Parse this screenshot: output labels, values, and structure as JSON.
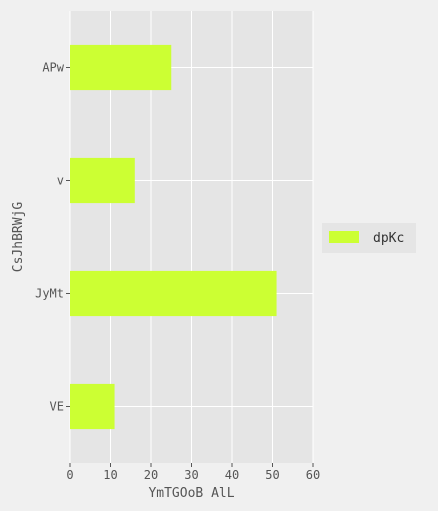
{
  "chart_data": {
    "type": "bar",
    "orientation": "horizontal",
    "categories": [
      "APw",
      "v",
      "JyMt",
      "VE"
    ],
    "series": [
      {
        "name": "dpKc",
        "values": [
          25,
          16,
          51,
          11
        ]
      }
    ],
    "xlabel": "YmTGOoB AlL",
    "ylabel": "CsJhBRWjG",
    "xlim": [
      0,
      60
    ],
    "xticks": [
      0,
      10,
      20,
      30,
      40,
      50,
      60
    ],
    "grid": true,
    "legend": "right",
    "colors": {
      "bar": "#ccff33",
      "plot_bg": "#e5e5e5",
      "page_bg": "#f0f0f0",
      "grid": "#ffffff"
    }
  }
}
